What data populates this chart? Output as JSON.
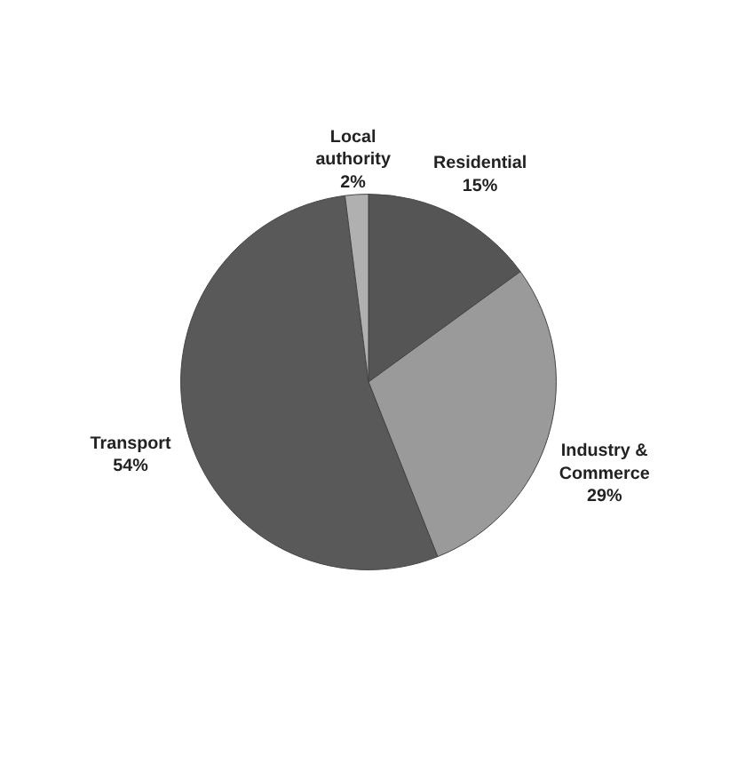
{
  "chart_data": {
    "type": "pie",
    "categories": [
      "Residential",
      "Industry & Commerce",
      "Transport",
      "Local authority"
    ],
    "values": [
      15,
      29,
      54,
      2
    ],
    "value_labels": [
      "15%",
      "29%",
      "54%",
      "2%"
    ],
    "colors": [
      "#555555",
      "#9a9a9a",
      "#595959",
      "#b0b0b0"
    ],
    "legend": false
  }
}
